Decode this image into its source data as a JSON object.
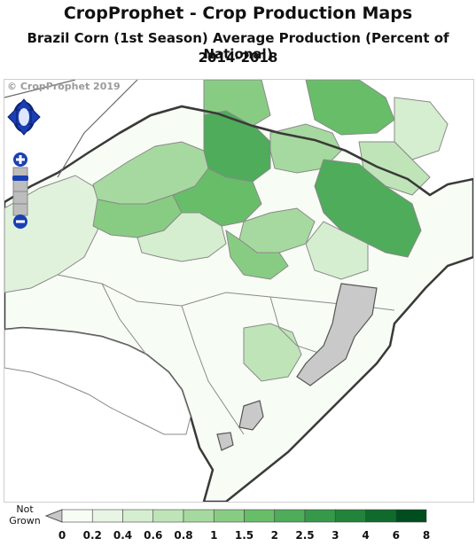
{
  "header": {
    "title": "CropProphet - Crop Production Maps",
    "subtitle": "Brazil Corn (1st Season) Average Production (Percent of National)",
    "period": "2014-2018"
  },
  "map": {
    "copyright": "© CropProphet 2019",
    "controls": {
      "pan": "pan-arrows-icon",
      "zoom_in": "plus-icon",
      "zoom_out": "minus-icon"
    },
    "colors": {
      "not_grown": "#c8c8c8",
      "water": "#c9c9c9",
      "border_state": "#3a3a3a",
      "border_region": "#8a8a8a"
    }
  },
  "legend": {
    "not_grown_label_1": "Not",
    "not_grown_label_2": "Grown",
    "ticks": [
      "0",
      "0.2",
      "0.4",
      "0.6",
      "0.8",
      "1",
      "1.5",
      "2",
      "2.5",
      "3",
      "4",
      "6",
      "8"
    ],
    "colors": [
      "#f7fcf5",
      "#e8f5e4",
      "#d5eecf",
      "#bfe4b8",
      "#a6d99f",
      "#88cc83",
      "#68bd69",
      "#4eac5a",
      "#36994a",
      "#22833b",
      "#0f6a2c",
      "#004d1f"
    ]
  }
}
